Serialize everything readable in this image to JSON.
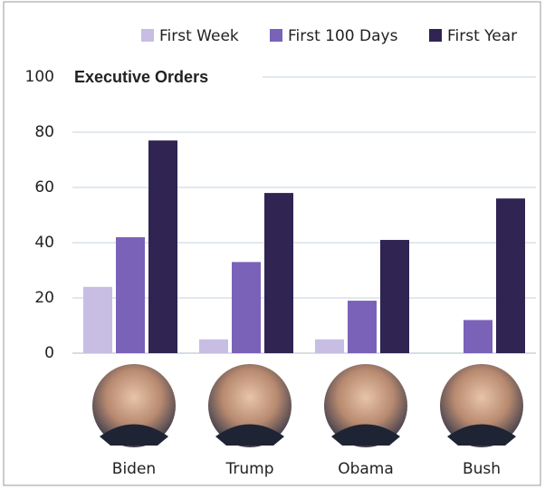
{
  "chart_data": {
    "type": "bar",
    "title": "Executive Orders",
    "categories": [
      "Biden",
      "Trump",
      "Obama",
      "Bush"
    ],
    "series": [
      {
        "name": "First Week",
        "color": "#c8bde3",
        "values": [
          24,
          5,
          5,
          0
        ]
      },
      {
        "name": "First 100 Days",
        "color": "#7a62b8",
        "values": [
          42,
          33,
          19,
          12
        ]
      },
      {
        "name": "First Year",
        "color": "#2f2452",
        "values": [
          77,
          58,
          41,
          56
        ]
      }
    ],
    "ylim": [
      0,
      100
    ],
    "yticks": [
      0,
      20,
      40,
      60,
      80,
      100
    ],
    "grid": true
  }
}
